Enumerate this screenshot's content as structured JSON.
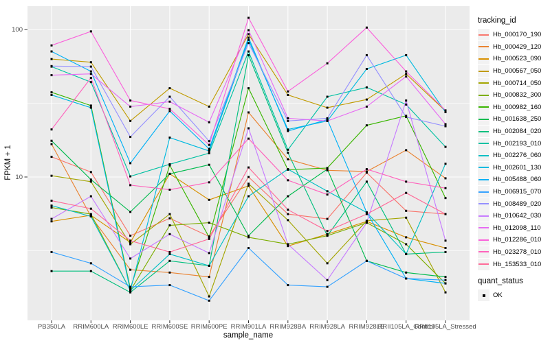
{
  "figure": {
    "panel_bg": "#EBEBEB",
    "grid_color": "#FFFFFF",
    "axis_text_color": "#4D4D4D",
    "tick_color": "#333333",
    "title_color": "#000000",
    "legend_key_bg": "#F2F2F2"
  },
  "axes": {
    "x_title": "sample_name",
    "y_title": "FPKM + 1",
    "y_scale": "log10",
    "y_major_ticks": [
      {
        "label": "100",
        "value": 100
      },
      {
        "label": "10",
        "value": 10
      }
    ],
    "y_minor_values": [
      31.6,
      3.16
    ]
  },
  "legend": {
    "tracking_title": "tracking_id",
    "quant_title": "quant_status",
    "quant_items": [
      {
        "label": "OK",
        "marker": "black-square"
      }
    ]
  },
  "chart_data": {
    "type": "line",
    "title": "",
    "xlabel": "sample_name",
    "ylabel": "FPKM + 1",
    "y_scale": "log10",
    "ylim": [
      1.1,
      140
    ],
    "grid": true,
    "legend_position": "right",
    "marker": "black-square",
    "categories": [
      "PB350LA",
      "RRIM600LA",
      "RRIM600LE",
      "RRIM600SE",
      "RRIM600PE",
      "RRIM901LA",
      "RRIM928BA",
      "RRIM928LA",
      "RRIM928LE",
      "RRII105LA_Control",
      "RRII105LA_Stressed"
    ],
    "series": [
      {
        "name": "Hb_000170_190",
        "color": "#F8766D",
        "values": [
          13.7,
          10.8,
          4.0,
          5.25,
          3.95,
          10.0,
          5.6,
          5.2,
          10.7,
          5.9,
          5.6
        ]
      },
      {
        "name": "Hb_000429_120",
        "color": "#EA8331",
        "values": [
          16.7,
          5.4,
          2.35,
          2.25,
          2.1,
          27.4,
          13.2,
          11.1,
          10.9,
          15.2,
          9.8
        ]
      },
      {
        "name": "Hb_000523_090",
        "color": "#D89000",
        "values": [
          5.0,
          5.5,
          3.6,
          10.5,
          7.0,
          8.7,
          3.4,
          4.1,
          5.0,
          3.9,
          3.3
        ]
      },
      {
        "name": "Hb_000567_050",
        "color": "#C09B00",
        "values": [
          63,
          60,
          24,
          40,
          30,
          93,
          36,
          29.5,
          33.5,
          50,
          28
        ]
      },
      {
        "name": "Hb_000714_050",
        "color": "#A3A500",
        "values": [
          10.2,
          9.3,
          3.5,
          5.6,
          1.55,
          9.0,
          5.1,
          2.6,
          5.05,
          5.3,
          1.65
        ]
      },
      {
        "name": "Hb_000832_300",
        "color": "#7CAE00",
        "values": [
          6.2,
          5.6,
          1.7,
          4.7,
          4.9,
          3.9,
          3.5,
          4.0,
          4.9,
          3.5,
          1.9
        ]
      },
      {
        "name": "Hb_000982_160",
        "color": "#39B600",
        "values": [
          37.5,
          30.5,
          1.75,
          12.0,
          3.9,
          40,
          11.2,
          11.5,
          22.4,
          26,
          7.2
        ]
      },
      {
        "name": "Hb_001638_250",
        "color": "#00BB4E",
        "values": [
          17.6,
          9.6,
          5.8,
          10.5,
          12.1,
          4.0,
          7.4,
          11.3,
          2.7,
          2.25,
          2.1
        ]
      },
      {
        "name": "Hb_002084_020",
        "color": "#00BF7D",
        "values": [
          2.3,
          2.3,
          1.65,
          2.7,
          2.5,
          67,
          14.6,
          4.0,
          9.3,
          3.0,
          3.1
        ]
      },
      {
        "name": "Hb_002193_010",
        "color": "#00C1A3",
        "values": [
          56,
          44,
          10.1,
          12.2,
          14.5,
          71,
          15.3,
          35,
          40.5,
          31,
          16
        ]
      },
      {
        "name": "Hb_002276_060",
        "color": "#00BFC4",
        "values": [
          6.4,
          5.4,
          1.7,
          3.0,
          2.5,
          7.4,
          11.3,
          8.0,
          5.75,
          3.0,
          12.3
        ]
      },
      {
        "name": "Hb_002601_130",
        "color": "#00BAE0",
        "values": [
          36,
          29.5,
          1.7,
          18.5,
          15,
          85,
          21,
          24,
          54,
          67,
          27.5
        ]
      },
      {
        "name": "Hb_005488_060",
        "color": "#00B0F6",
        "values": [
          71,
          52,
          12.4,
          28,
          15.5,
          88,
          20.5,
          24.5,
          5.75,
          2.05,
          1.9
        ]
      },
      {
        "name": "Hb_006915_070",
        "color": "#35A2FF",
        "values": [
          3.1,
          2.6,
          1.8,
          1.85,
          1.45,
          3.3,
          1.85,
          1.8,
          2.7,
          2.05,
          2.0
        ]
      },
      {
        "name": "Hb_008489_020",
        "color": "#9590FF",
        "values": [
          56.5,
          56,
          18.7,
          35,
          17.5,
          81,
          24,
          25,
          67,
          25.5,
          22.1
        ]
      },
      {
        "name": "Hb_010642_030",
        "color": "#C77CFF",
        "values": [
          5.2,
          7.4,
          2.8,
          4.1,
          3.05,
          21.4,
          3.5,
          2.0,
          4.9,
          33,
          3.7
        ]
      },
      {
        "name": "Hb_012098_110",
        "color": "#E76BF3",
        "values": [
          49,
          50,
          30,
          32.4,
          23.5,
          99,
          25,
          24,
          30,
          48,
          22.8
        ]
      },
      {
        "name": "Hb_012286_010",
        "color": "#FA62DB",
        "values": [
          78,
          97,
          33,
          29,
          16.5,
          120,
          38,
          59,
          103,
          52,
          28.3
        ]
      },
      {
        "name": "Hb_023278_010",
        "color": "#FF62BC",
        "values": [
          21,
          47,
          8.8,
          8.2,
          9.2,
          18.2,
          9.5,
          7.6,
          11.3,
          9.3,
          8.4
        ]
      },
      {
        "name": "Hb_153533_010",
        "color": "#FF6A98",
        "values": [
          6.9,
          6.1,
          3.7,
          3.1,
          3.8,
          11.6,
          6.0,
          4.3,
          5.6,
          7.8,
          5.6
        ]
      }
    ]
  }
}
